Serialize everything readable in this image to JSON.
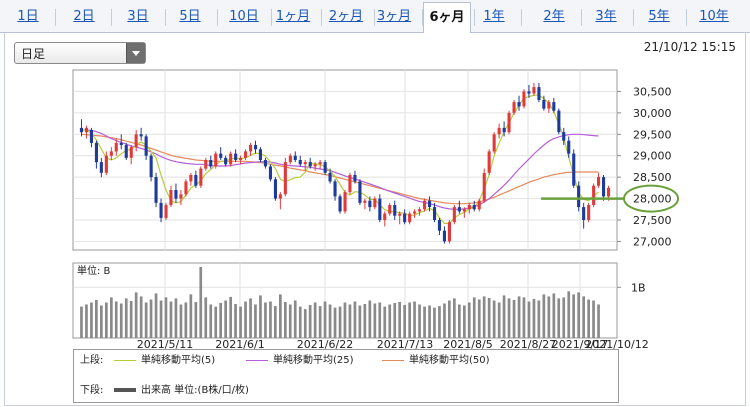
{
  "tabs": [
    {
      "label": "1日"
    },
    {
      "label": "2日"
    },
    {
      "label": "3日"
    },
    {
      "label": "5日"
    },
    {
      "label": "10日"
    },
    {
      "label": "1ヶ月"
    },
    {
      "label": "2ヶ月"
    },
    {
      "label": "3ヶ月"
    },
    {
      "label": "6ヶ月",
      "active": true
    },
    {
      "label": "1年"
    },
    {
      "label": "2年"
    },
    {
      "label": "3年"
    },
    {
      "label": "5年"
    },
    {
      "label": "10年"
    }
  ],
  "controls": {
    "period_select": "日足"
  },
  "timestamp": "21/10/12 15:15",
  "colors": {
    "up": "#e03a3a",
    "down": "#1e3a9a",
    "ma5": "#b7cc3c",
    "ma25": "#b55fd8",
    "ma50": "#e38a5a",
    "highlight_line": "#6aa03c",
    "highlight_circle": "#6aa03c",
    "volume": "#8a8a8a"
  },
  "legend": {
    "upper_label": "上段:",
    "lower_label": "下段:",
    "items": [
      {
        "name": "単純移動平均(5)",
        "color": "#b7cc3c"
      },
      {
        "name": "単純移動平均(25)",
        "color": "#b55fd8"
      },
      {
        "name": "単純移動平均(50)",
        "color": "#e38a5a"
      }
    ],
    "volume_label": "出来高 単位:(B株/口/枚)"
  },
  "chart_data": {
    "type": "candlestick",
    "title": "",
    "xlabel": "",
    "ylabel": "",
    "ylim": [
      26800,
      31000
    ],
    "y_ticks": [
      "30,500",
      "30,000",
      "29,500",
      "29,000",
      "28,500",
      "28,000",
      "27,500",
      "27,000"
    ],
    "x_tick_labels": [
      "2021/5/11",
      "2021/6/1",
      "2021/6/22",
      "2021/7/13",
      "2021/8/5",
      "2021/8/27",
      "2021/9/17",
      "2021/10/12"
    ],
    "highlight_price": "28,000",
    "candles": [
      [
        29650,
        29850,
        29450,
        29550
      ],
      [
        29550,
        29700,
        29400,
        29650
      ],
      [
        29600,
        29650,
        29200,
        29300
      ],
      [
        29300,
        29350,
        28700,
        28850
      ],
      [
        28850,
        28950,
        28500,
        28600
      ],
      [
        28600,
        29100,
        28550,
        29000
      ],
      [
        29000,
        29200,
        28900,
        29100
      ],
      [
        29100,
        29400,
        29000,
        29300
      ],
      [
        29300,
        29500,
        29150,
        29250
      ],
      [
        29250,
        29300,
        28900,
        28950
      ],
      [
        28950,
        29250,
        28800,
        29200
      ],
      [
        29200,
        29600,
        29100,
        29500
      ],
      [
        29500,
        29650,
        29350,
        29450
      ],
      [
        29450,
        29500,
        28900,
        29000
      ],
      [
        29000,
        29050,
        28400,
        28500
      ],
      [
        28500,
        28600,
        27800,
        27900
      ],
      [
        27900,
        28000,
        27450,
        27550
      ],
      [
        27550,
        27900,
        27500,
        27850
      ],
      [
        27850,
        28300,
        27800,
        28200
      ],
      [
        28200,
        28350,
        27900,
        28000
      ],
      [
        28000,
        28200,
        27850,
        28100
      ],
      [
        28100,
        28450,
        28050,
        28400
      ],
      [
        28400,
        28600,
        28300,
        28550
      ],
      [
        28550,
        28650,
        28250,
        28300
      ],
      [
        28300,
        28750,
        28250,
        28700
      ],
      [
        28700,
        28950,
        28650,
        28900
      ],
      [
        28900,
        29000,
        28700,
        28750
      ],
      [
        28750,
        29100,
        28700,
        29050
      ],
      [
        29050,
        29200,
        28900,
        28950
      ],
      [
        28950,
        29000,
        28750,
        28800
      ],
      [
        28800,
        29100,
        28750,
        29050
      ],
      [
        29050,
        29150,
        28850,
        28900
      ],
      [
        28900,
        29000,
        28800,
        28950
      ],
      [
        28950,
        29150,
        28900,
        29100
      ],
      [
        29100,
        29300,
        29000,
        29250
      ],
      [
        29250,
        29350,
        29050,
        29150
      ],
      [
        29150,
        29200,
        28850,
        28900
      ],
      [
        28900,
        28950,
        28700,
        28750
      ],
      [
        28750,
        28800,
        28400,
        28450
      ],
      [
        28450,
        28500,
        27950,
        28000
      ],
      [
        28000,
        28150,
        27750,
        28100
      ],
      [
        28100,
        28950,
        28050,
        28850
      ],
      [
        28850,
        29050,
        28800,
        29000
      ],
      [
        29000,
        29100,
        28850,
        28900
      ],
      [
        28900,
        29000,
        28750,
        28800
      ],
      [
        28800,
        28900,
        28650,
        28850
      ],
      [
        28850,
        28950,
        28700,
        28750
      ],
      [
        28750,
        28850,
        28650,
        28800
      ],
      [
        28800,
        28900,
        28700,
        28850
      ],
      [
        28850,
        28900,
        28550,
        28600
      ],
      [
        28600,
        28700,
        28350,
        28400
      ],
      [
        28400,
        28450,
        27950,
        28050
      ],
      [
        28050,
        28100,
        27650,
        27700
      ],
      [
        27700,
        28200,
        27650,
        28150
      ],
      [
        28150,
        28600,
        28100,
        28550
      ],
      [
        28550,
        28650,
        28350,
        28400
      ],
      [
        28400,
        28450,
        27850,
        27900
      ],
      [
        27900,
        28000,
        27750,
        27950
      ],
      [
        27950,
        28050,
        27700,
        27800
      ],
      [
        27800,
        28050,
        27750,
        28000
      ],
      [
        28000,
        28100,
        27450,
        27500
      ],
      [
        27500,
        27700,
        27350,
        27650
      ],
      [
        27650,
        27900,
        27600,
        27850
      ],
      [
        27850,
        27950,
        27500,
        27600
      ],
      [
        27600,
        27700,
        27400,
        27650
      ],
      [
        27650,
        27750,
        27400,
        27450
      ],
      [
        27450,
        27700,
        27400,
        27650
      ],
      [
        27650,
        27750,
        27550,
        27700
      ],
      [
        27700,
        27800,
        27600,
        27750
      ],
      [
        27750,
        28000,
        27700,
        27950
      ],
      [
        27950,
        28050,
        27700,
        27800
      ],
      [
        27800,
        27900,
        27450,
        27500
      ],
      [
        27500,
        27550,
        27150,
        27250
      ],
      [
        27250,
        27350,
        26950,
        27000
      ],
      [
        27000,
        27500,
        26950,
        27450
      ],
      [
        27450,
        27850,
        27400,
        27800
      ],
      [
        27800,
        27950,
        27650,
        27700
      ],
      [
        27700,
        27800,
        27550,
        27750
      ],
      [
        27750,
        27900,
        27650,
        27850
      ],
      [
        27850,
        27950,
        27700,
        27750
      ],
      [
        27750,
        28000,
        27700,
        27950
      ],
      [
        27950,
        28700,
        27900,
        28600
      ],
      [
        28600,
        29150,
        28550,
        29100
      ],
      [
        29100,
        29550,
        29050,
        29500
      ],
      [
        29500,
        29750,
        29400,
        29650
      ],
      [
        29650,
        29800,
        29450,
        29550
      ],
      [
        29550,
        30050,
        29500,
        30000
      ],
      [
        30000,
        30300,
        29950,
        30250
      ],
      [
        30250,
        30400,
        30050,
        30150
      ],
      [
        30150,
        30550,
        30100,
        30500
      ],
      [
        30500,
        30650,
        30350,
        30450
      ],
      [
        30450,
        30700,
        30400,
        30600
      ],
      [
        30600,
        30700,
        30250,
        30300
      ],
      [
        30300,
        30400,
        30050,
        30100
      ],
      [
        30100,
        30300,
        30000,
        30250
      ],
      [
        30250,
        30350,
        30000,
        30050
      ],
      [
        30050,
        30100,
        29500,
        29550
      ],
      [
        29550,
        29650,
        29250,
        29350
      ],
      [
        29350,
        29450,
        28950,
        29050
      ],
      [
        29050,
        29150,
        28250,
        28300
      ],
      [
        28300,
        28400,
        27700,
        27800
      ],
      [
        27800,
        27900,
        27300,
        27500
      ],
      [
        27500,
        27900,
        27450,
        27850
      ],
      [
        27850,
        28350,
        27800,
        28300
      ],
      [
        28300,
        28600,
        28250,
        28500
      ],
      [
        28500,
        28550,
        27950,
        28050
      ],
      [
        28050,
        28300,
        27950,
        28250
      ]
    ],
    "ma5": [
      29600,
      29600,
      29520,
      29370,
      29150,
      28950,
      28900,
      28950,
      29050,
      29120,
      29150,
      29250,
      29320,
      29250,
      29100,
      28950,
      28550,
      28200,
      27950,
      27900,
      27930,
      28080,
      28250,
      28320,
      28420,
      28580,
      28680,
      28790,
      28870,
      28880,
      28920,
      28950,
      28930,
      28950,
      29010,
      29060,
      29050,
      28990,
      28860,
      28700,
      28450,
      28400,
      28440,
      28490,
      28500,
      28620,
      28820,
      28810,
      28800,
      28740,
      28640,
      28510,
      28330,
      28140,
      28080,
      28160,
      28150,
      28080,
      27980,
      27980,
      27850,
      27740,
      27700,
      27690,
      27670,
      27660,
      27600,
      27620,
      27670,
      27710,
      27770,
      27720,
      27550,
      27420,
      27420,
      27550,
      27630,
      27680,
      27760,
      27800,
      27950,
      28220,
      28560,
      29000,
      29290,
      29560,
      29780,
      29990,
      30180,
      30340,
      30380,
      30410,
      30420,
      30330,
      30230,
      30030,
      29750,
      29420,
      28970,
      28550,
      28140,
      27980,
      27950,
      28070,
      28150
    ],
    "ma25": [
      29600,
      29600,
      29590,
      29560,
      29520,
      29460,
      29400,
      29350,
      29310,
      29270,
      29230,
      29200,
      29170,
      29130,
      29090,
      29040,
      28980,
      28930,
      28890,
      28860,
      28840,
      28820,
      28810,
      28800,
      28800,
      28790,
      28770,
      28760,
      28760,
      28760,
      28770,
      28790,
      28810,
      28830,
      28840,
      28850,
      28860,
      28860,
      28850,
      28830,
      28800,
      28780,
      28770,
      28760,
      28750,
      28740,
      28730,
      28710,
      28690,
      28670,
      28650,
      28610,
      28570,
      28530,
      28490,
      28460,
      28420,
      28380,
      28340,
      28300,
      28260,
      28210,
      28170,
      28130,
      28090,
      28050,
      28010,
      27970,
      27930,
      27910,
      27880,
      27850,
      27810,
      27780,
      27760,
      27750,
      27750,
      27760,
      27780,
      27810,
      27850,
      27920,
      28000,
      28100,
      28200,
      28310,
      28430,
      28560,
      28690,
      28810,
      28920,
      29040,
      29150,
      29250,
      29340,
      29400,
      29440,
      29470,
      29490,
      29500,
      29500,
      29490,
      29480,
      29470,
      29460
    ],
    "ma50": [
      29500,
      29490,
      29480,
      29470,
      29460,
      29440,
      29420,
      29400,
      29370,
      29340,
      29310,
      29280,
      29250,
      29210,
      29170,
      29130,
      29090,
      29050,
      29010,
      28980,
      28960,
      28940,
      28920,
      28900,
      28890,
      28880,
      28870,
      28870,
      28870,
      28870,
      28870,
      28870,
      28870,
      28870,
      28860,
      28850,
      28840,
      28820,
      28800,
      28780,
      28760,
      28740,
      28710,
      28690,
      28670,
      28650,
      28620,
      28600,
      28580,
      28560,
      28540,
      28510,
      28480,
      28450,
      28420,
      28390,
      28360,
      28330,
      28300,
      28270,
      28240,
      28210,
      28180,
      28150,
      28120,
      28090,
      28060,
      28030,
      28000,
      27980,
      27960,
      27940,
      27920,
      27900,
      27890,
      27880,
      27880,
      27880,
      27890,
      27900,
      27920,
      27950,
      27990,
      28030,
      28080,
      28130,
      28180,
      28230,
      28280,
      28330,
      28380,
      28420,
      28460,
      28500,
      28530,
      28560,
      28580,
      28600,
      28610,
      28620,
      28620,
      28620,
      28620,
      28620,
      28620
    ],
    "volume": {
      "unit": "B",
      "y_tick": "1B",
      "max": 1.4,
      "values": [
        0.62,
        0.66,
        0.7,
        0.75,
        0.64,
        0.7,
        0.8,
        0.72,
        0.68,
        0.78,
        0.73,
        0.9,
        0.82,
        0.7,
        0.76,
        0.88,
        0.74,
        0.8,
        0.72,
        0.78,
        0.66,
        0.7,
        0.86,
        0.71,
        1.4,
        0.8,
        0.66,
        0.62,
        0.69,
        0.74,
        0.81,
        0.67,
        0.62,
        0.72,
        0.78,
        0.66,
        0.84,
        0.7,
        0.72,
        0.63,
        0.86,
        0.71,
        0.66,
        0.74,
        0.62,
        0.57,
        0.65,
        0.7,
        0.63,
        0.72,
        0.66,
        0.6,
        0.62,
        0.7,
        0.66,
        0.72,
        0.64,
        0.67,
        0.74,
        0.68,
        0.7,
        0.62,
        0.66,
        0.69,
        0.71,
        0.65,
        0.7,
        0.72,
        0.66,
        0.62,
        0.64,
        0.6,
        0.63,
        0.68,
        0.74,
        0.78,
        0.66,
        0.64,
        0.7,
        0.8,
        0.76,
        0.82,
        0.79,
        0.74,
        0.7,
        0.84,
        0.78,
        0.75,
        0.82,
        0.8,
        0.72,
        0.77,
        0.74,
        0.86,
        0.82,
        0.88,
        0.78,
        0.8,
        0.92,
        0.86,
        0.9,
        0.82,
        0.76,
        0.74,
        0.66
      ]
    }
  }
}
